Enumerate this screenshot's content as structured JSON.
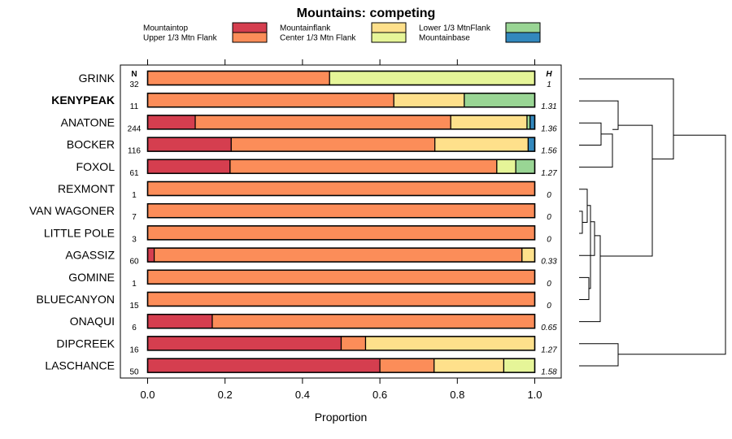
{
  "chart_data": {
    "type": "bar",
    "orientation": "horizontal",
    "stacked": true,
    "title": "Mountains: competing",
    "xlabel": "Proportion",
    "xlim": [
      0,
      1
    ],
    "xticks": [
      "0.0",
      "0.2",
      "0.4",
      "0.6",
      "0.8",
      "1.0"
    ],
    "n_header": "N",
    "h_header": "H",
    "legend": [
      {
        "name": "Mountaintop",
        "color": "#d53e4f"
      },
      {
        "name": "Upper 1/3 Mtn Flank",
        "color": "#fc8d59"
      },
      {
        "name": "Mountainflank",
        "color": "#fee08b"
      },
      {
        "name": "Center 1/3 Mtn Flank",
        "color": "#e6f598"
      },
      {
        "name": "Lower 1/3 MtnFlank",
        "color": "#99d594"
      },
      {
        "name": "Mountainbase",
        "color": "#3288bd"
      }
    ],
    "segment_colors": [
      "#d53e4f",
      "#fc8d59",
      "#fee08b",
      "#e6f598",
      "#99d594",
      "#3288bd"
    ],
    "rows": [
      {
        "label": "GRINK",
        "bold": false,
        "n": "32",
        "h": "1",
        "values": [
          0,
          0.47,
          0,
          0.53,
          0,
          0
        ]
      },
      {
        "label": "KENYPEAK",
        "bold": true,
        "n": "11",
        "h": "1.31",
        "values": [
          0,
          0.636,
          0.182,
          0,
          0.182,
          0
        ]
      },
      {
        "label": "ANATONE",
        "bold": false,
        "n": "244",
        "h": "1.36",
        "values": [
          0.123,
          0.66,
          0.197,
          0,
          0.008,
          0.012
        ]
      },
      {
        "label": "BOCKER",
        "bold": false,
        "n": "116",
        "h": "1.56",
        "values": [
          0.216,
          0.526,
          0.241,
          0,
          0,
          0.017
        ]
      },
      {
        "label": "FOXOL",
        "bold": false,
        "n": "61",
        "h": "1.27",
        "values": [
          0.213,
          0.689,
          0,
          0.049,
          0.049,
          0
        ]
      },
      {
        "label": "REXMONT",
        "bold": false,
        "n": "1",
        "h": "0",
        "values": [
          0,
          1,
          0,
          0,
          0,
          0
        ]
      },
      {
        "label": "VAN WAGONER",
        "bold": false,
        "n": "7",
        "h": "0",
        "values": [
          0,
          1,
          0,
          0,
          0,
          0
        ]
      },
      {
        "label": "LITTLE POLE",
        "bold": false,
        "n": "3",
        "h": "0",
        "values": [
          0,
          1,
          0,
          0,
          0,
          0
        ]
      },
      {
        "label": "AGASSIZ",
        "bold": false,
        "n": "60",
        "h": "0.33",
        "values": [
          0.017,
          0.95,
          0.033,
          0,
          0,
          0
        ]
      },
      {
        "label": "GOMINE",
        "bold": false,
        "n": "1",
        "h": "0",
        "values": [
          0,
          1,
          0,
          0,
          0,
          0
        ]
      },
      {
        "label": "BLUECANYON",
        "bold": false,
        "n": "15",
        "h": "0",
        "values": [
          0,
          1,
          0,
          0,
          0,
          0
        ]
      },
      {
        "label": "ONAQUI",
        "bold": false,
        "n": "6",
        "h": "0.65",
        "values": [
          0.167,
          0.833,
          0,
          0,
          0,
          0
        ]
      },
      {
        "label": "DIPCREEK",
        "bold": false,
        "n": "16",
        "h": "1.27",
        "values": [
          0.5,
          0.063,
          0.437,
          0,
          0,
          0
        ]
      },
      {
        "label": "LASCHANCE",
        "bold": false,
        "n": "50",
        "h": "1.58",
        "values": [
          0.6,
          0.14,
          0.18,
          0.08,
          0,
          0
        ]
      }
    ]
  }
}
